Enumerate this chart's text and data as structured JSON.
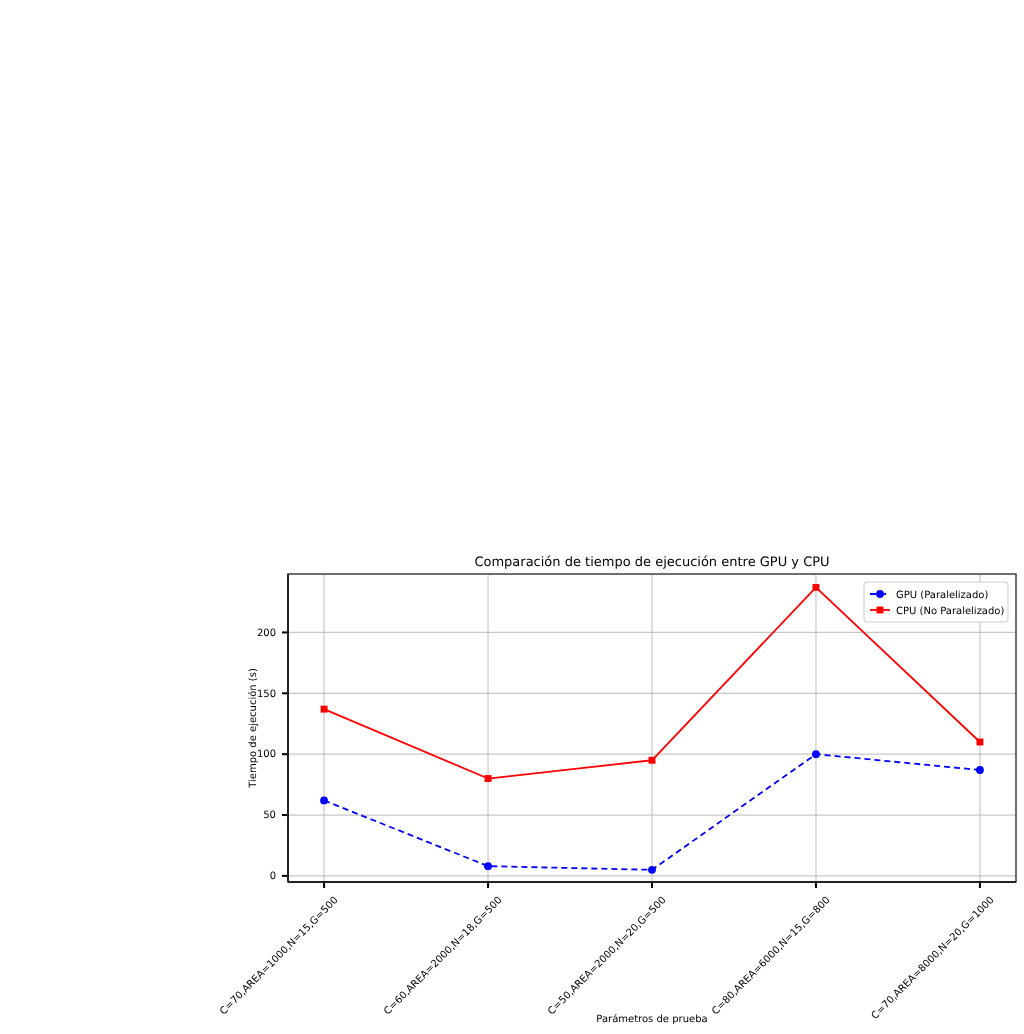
{
  "chart_data": {
    "type": "line",
    "title": "Comparación de tiempo de ejecución entre GPU y CPU",
    "xlabel": "Parámetros de prueba",
    "ylabel": "Tiempo de ejecución (s)",
    "categories": [
      "C=70,AREA=1000,N=15,G=500",
      "C=60,AREA=2000,N=18,G=500",
      "C=50,AREA=2000,N=20,G=500",
      "C=80,AREA=6000,N=15,G=800",
      "C=70,AREA=8000,N=20,G=1000"
    ],
    "series": [
      {
        "name": "GPU (Paralelizado)",
        "color": "#0000ff",
        "values": [
          62,
          8,
          5,
          100,
          87
        ],
        "marker": "circle",
        "line_style": "dashed"
      },
      {
        "name": "CPU (No Paralelizado)",
        "color": "#ff0000",
        "values": [
          137,
          80,
          95,
          237,
          110
        ],
        "marker": "square",
        "line_style": "solid"
      }
    ],
    "ylim": [
      -5,
      248
    ],
    "yticks": [
      0,
      50,
      100,
      150,
      200
    ],
    "grid": true,
    "legend": "top right"
  }
}
